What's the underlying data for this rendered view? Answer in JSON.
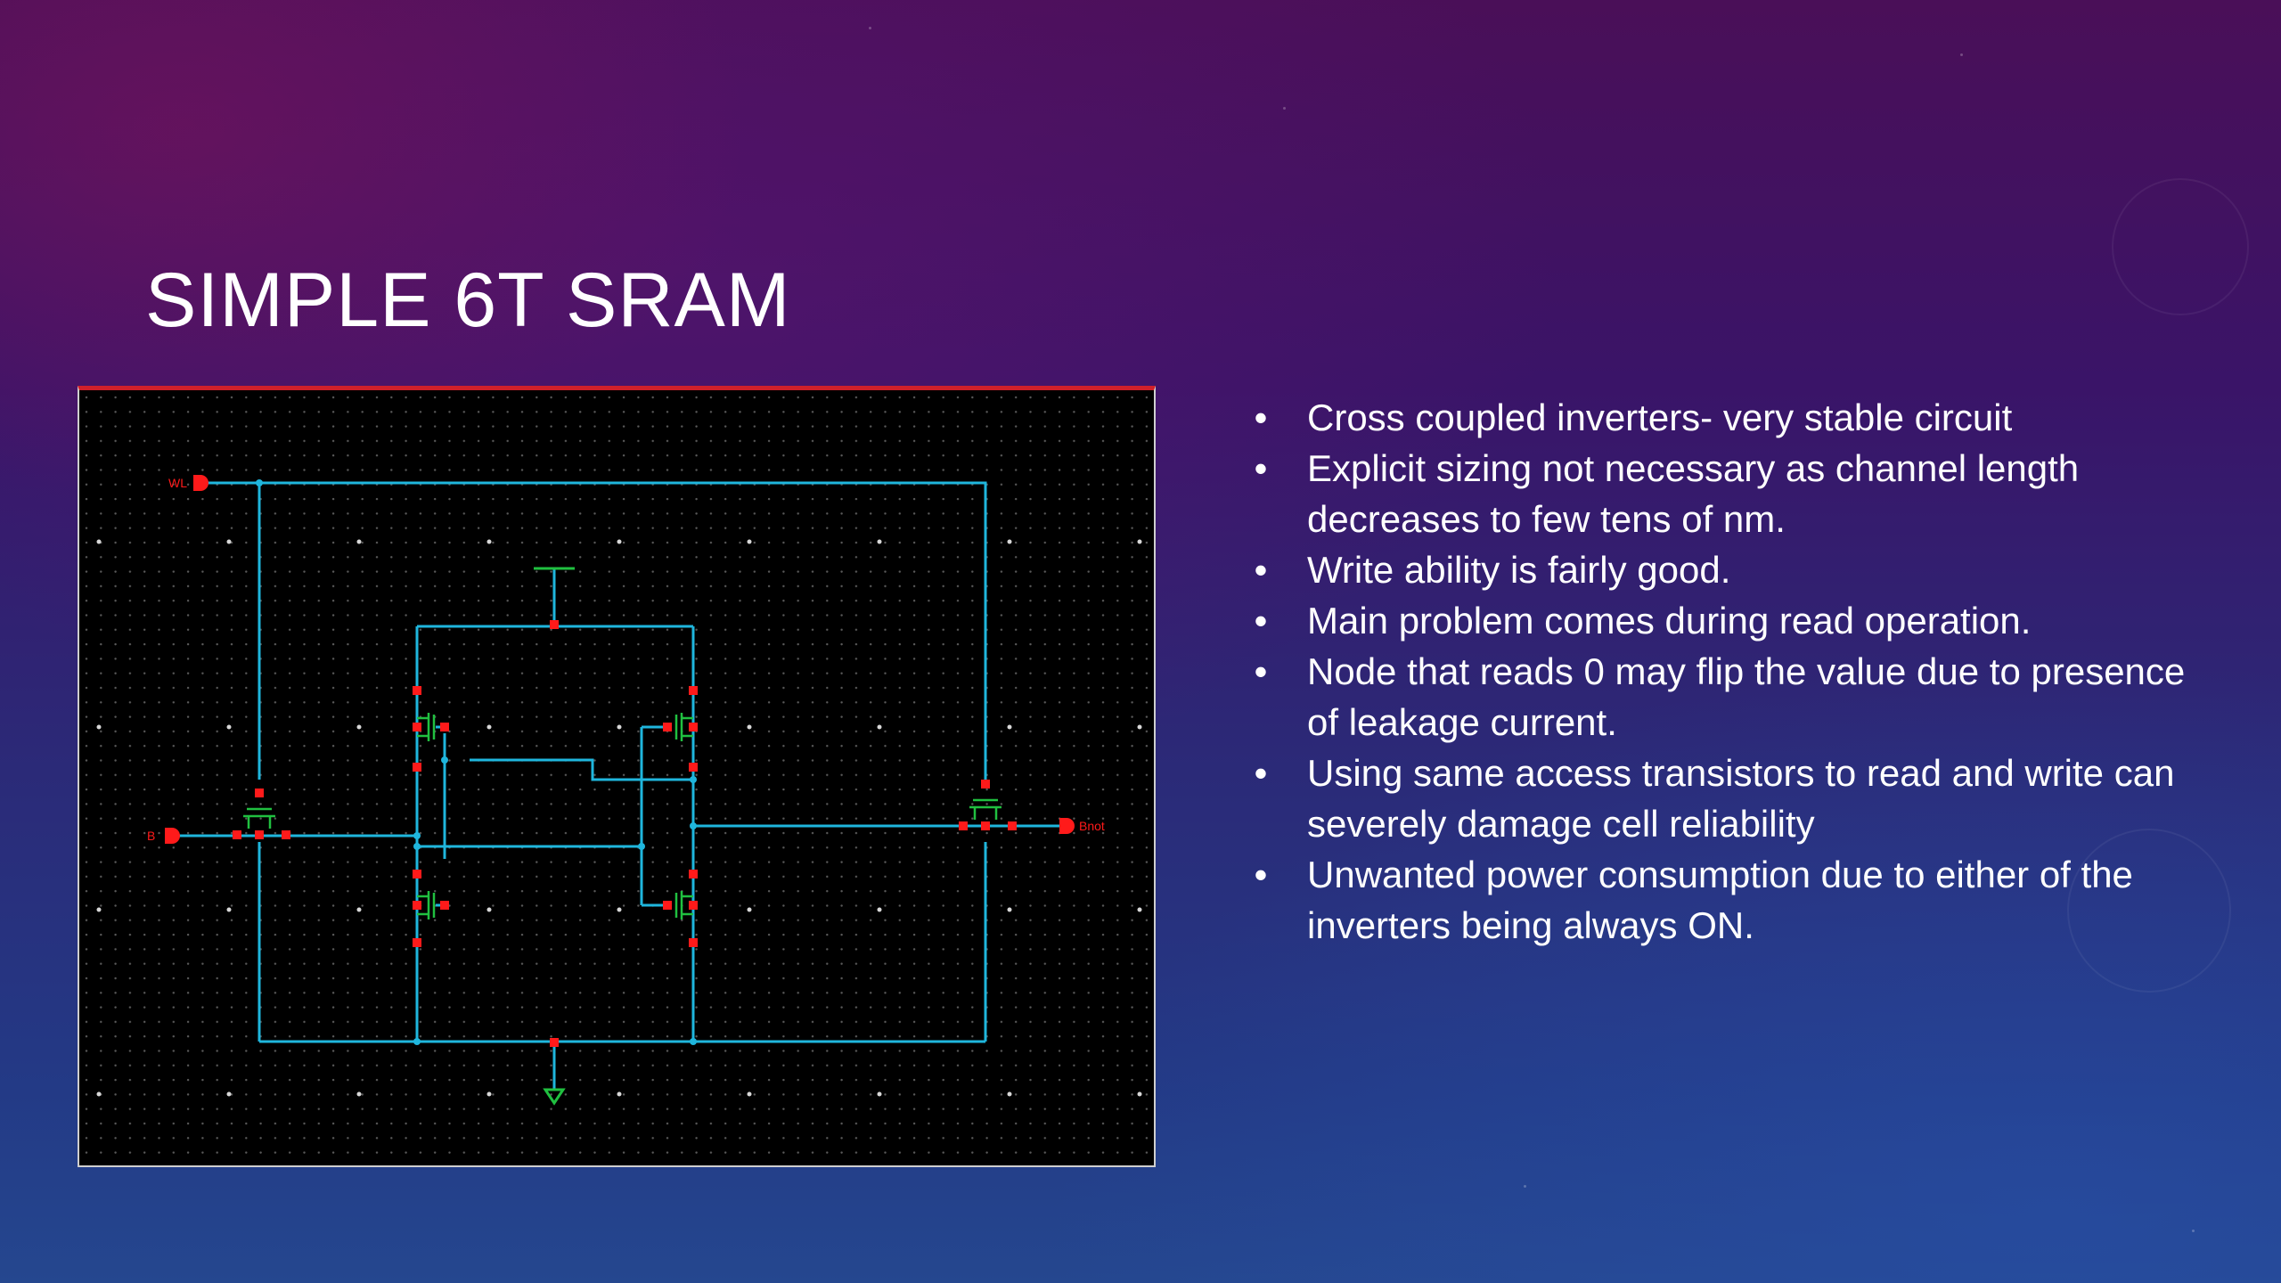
{
  "slide": {
    "title": "SIMPLE 6T SRAM",
    "bullets": [
      "Cross coupled inverters- very stable circuit",
      "Explicit sizing not necessary as channel length decreases to few tens of nm.",
      "Write ability is fairly good.",
      "Main problem comes during read operation.",
      "Node that reads 0 may flip the value due to presence of leakage current.",
      "Using same access transistors to read and write can severely damage cell reliability",
      "Unwanted power consumption due to either of the inverters being always ON."
    ],
    "bullet_symbol": "•"
  },
  "schematic": {
    "pin_labels": {
      "wordline": "WL",
      "bit": "B",
      "bit_bar": "Bnot"
    },
    "colors": {
      "background": "#000000",
      "wire": "#1fb6dd",
      "pin": "#ff1a1a",
      "device": "#20c040",
      "grid": "#5a5a5a",
      "frame_top": "#d0202a"
    }
  },
  "colors": {
    "title": "#ffffff",
    "text": "#ffffff"
  }
}
